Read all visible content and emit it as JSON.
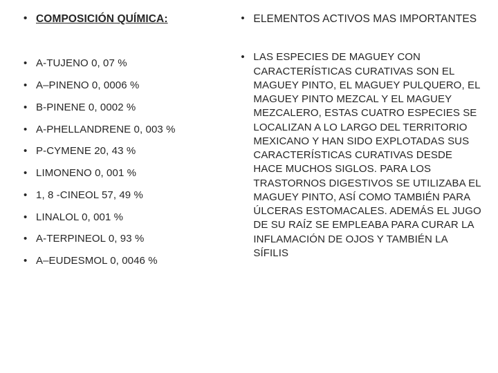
{
  "left": {
    "title": "COMPOSICIÓN QUÍMICA:",
    "items": [
      "A-TUJENO 0, 07 %",
      "A–PINENO 0, 0006 %",
      "B-PINENE 0, 0002 %",
      "A-PHELLANDRENE 0, 003 %",
      "P-CYMENE 20, 43 %",
      "LIMONENO 0, 001 %",
      "1, 8 -CINEOL 57, 49 %",
      "LINALOL 0, 001 %",
      "A-TERPINEOL 0, 93 %",
      "A–EUDESMOL 0, 0046 %"
    ]
  },
  "right": {
    "title": "ELEMENTOS ACTIVOS MAS IMPORTANTES",
    "body": "LAS ESPECIES DE MAGUEY CON CARACTERÍSTICAS CURATIVAS SON EL MAGUEY PINTO, EL MAGUEY PULQUERO, EL MAGUEY PINTO MEZCAL Y EL MAGUEY MEZCALERO, ESTAS CUATRO ESPECIES SE LOCALIZAN A LO LARGO DEL TERRITORIO MEXICANO Y HAN SIDO EXPLOTADAS SUS CARACTERÍSTICAS CURATIVAS DESDE HACE MUCHOS SIGLOS. PARA LOS TRASTORNOS DIGESTIVOS SE UTILIZABA EL MAGUEY PINTO, ASÍ COMO TAMBIÉN PARA ÚLCERAS ESTOMACALES. ADEMÁS EL JUGO DE SU RAÍZ SE EMPLEABA PARA CURAR LA INFLAMACIÓN DE OJOS Y TAMBIÉN LA SÍFILIS"
  },
  "style": {
    "bg": "#ffffff",
    "text_color": "#262626",
    "font_family": "Arial",
    "title_fontsize": 15.5,
    "item_fontsize": 15,
    "body_fontsize": 15
  }
}
